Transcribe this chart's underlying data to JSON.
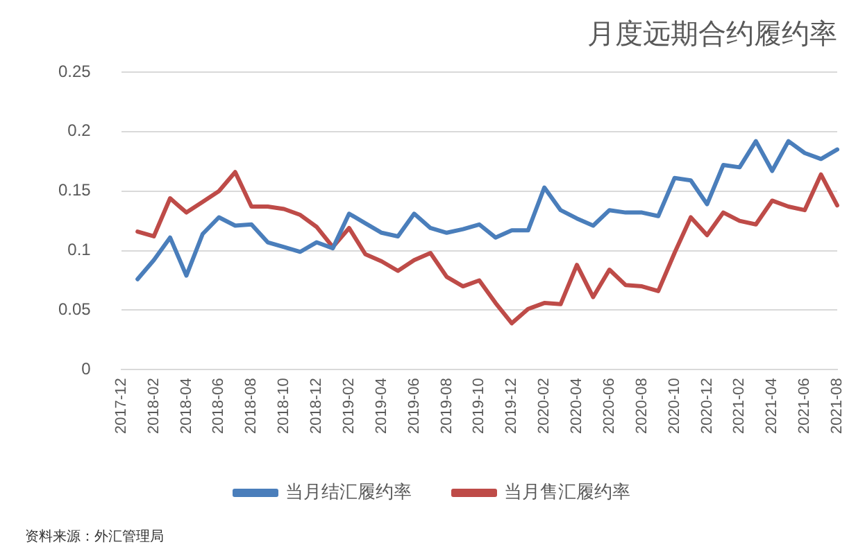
{
  "chart_data": {
    "type": "line",
    "title": "月度远期合约履约率",
    "categories": [
      "2017-12",
      null,
      "2018-02",
      null,
      "2018-04",
      null,
      "2018-06",
      null,
      "2018-08",
      null,
      "2018-10",
      null,
      "2018-12",
      null,
      "2019-02",
      null,
      "2019-04",
      null,
      "2019-06",
      null,
      "2019-08",
      null,
      "2019-10",
      null,
      "2019-12",
      null,
      "2020-02",
      null,
      "2020-04",
      null,
      "2020-06",
      null,
      "2020-08",
      null,
      "2020-10",
      null,
      "2020-12",
      null,
      "2021-02",
      null,
      "2021-04",
      null,
      "2021-06",
      null,
      "2021-08"
    ],
    "series": [
      {
        "name": "当月结汇履约率",
        "color": "#4a7ebb",
        "values": [
          null,
          0.076,
          0.092,
          0.111,
          0.079,
          0.114,
          0.128,
          0.121,
          0.122,
          0.107,
          0.103,
          0.099,
          0.107,
          0.102,
          0.131,
          0.123,
          0.115,
          0.112,
          0.131,
          0.119,
          0.115,
          0.118,
          0.122,
          0.111,
          0.117,
          0.117,
          0.153,
          0.134,
          0.127,
          0.121,
          0.134,
          0.132,
          0.132,
          0.129,
          0.161,
          0.159,
          0.139,
          0.172,
          0.17,
          0.192,
          0.167,
          0.192,
          0.182,
          0.177,
          0.185
        ]
      },
      {
        "name": "当月售汇履约率",
        "color": "#be4b48",
        "values": [
          null,
          0.116,
          0.112,
          0.144,
          0.132,
          0.141,
          0.15,
          0.166,
          0.137,
          0.137,
          0.135,
          0.13,
          0.12,
          0.103,
          0.119,
          0.097,
          0.091,
          0.083,
          0.092,
          0.098,
          0.078,
          0.07,
          0.075,
          0.056,
          0.039,
          0.051,
          0.056,
          0.055,
          0.088,
          0.061,
          0.084,
          0.071,
          0.07,
          0.066,
          0.098,
          0.128,
          0.113,
          0.132,
          0.125,
          0.122,
          0.142,
          0.137,
          0.134,
          0.164,
          0.138
        ]
      }
    ],
    "ylim": [
      0,
      0.25
    ],
    "yticks": [
      0,
      0.05,
      0.1,
      0.15,
      0.2,
      0.25
    ],
    "grid": "y",
    "legend": "bottom",
    "marker": "none",
    "line_style": "solid",
    "annotations": [
      "资料来源：外汇管理局"
    ]
  }
}
